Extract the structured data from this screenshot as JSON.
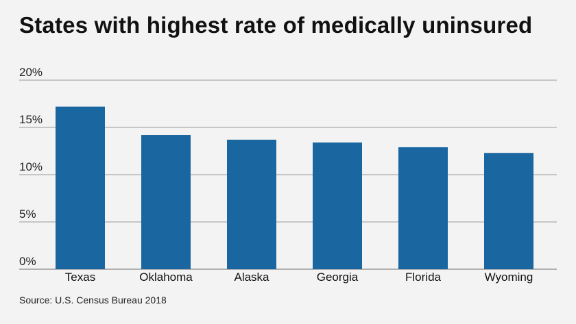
{
  "title": "States with highest rate of medically uninsured",
  "source": "Source: U.S. Census Bureau 2018",
  "chart_data": {
    "type": "bar",
    "title": "States with highest rate of medically uninsured",
    "categories": [
      "Texas",
      "Oklahoma",
      "Alaska",
      "Georgia",
      "Florida",
      "Wyoming"
    ],
    "values": [
      17.2,
      14.2,
      13.7,
      13.4,
      12.9,
      12.3
    ],
    "ylim": [
      0,
      20
    ],
    "yticks": [
      0,
      5,
      10,
      15,
      20
    ],
    "ytick_labels": [
      "0%",
      "5%",
      "10%",
      "15%",
      "20%"
    ],
    "xlabel": "",
    "ylabel": "",
    "grid": true,
    "bar_color": "#1a66a0",
    "grid_color": "#9a9a9a"
  }
}
